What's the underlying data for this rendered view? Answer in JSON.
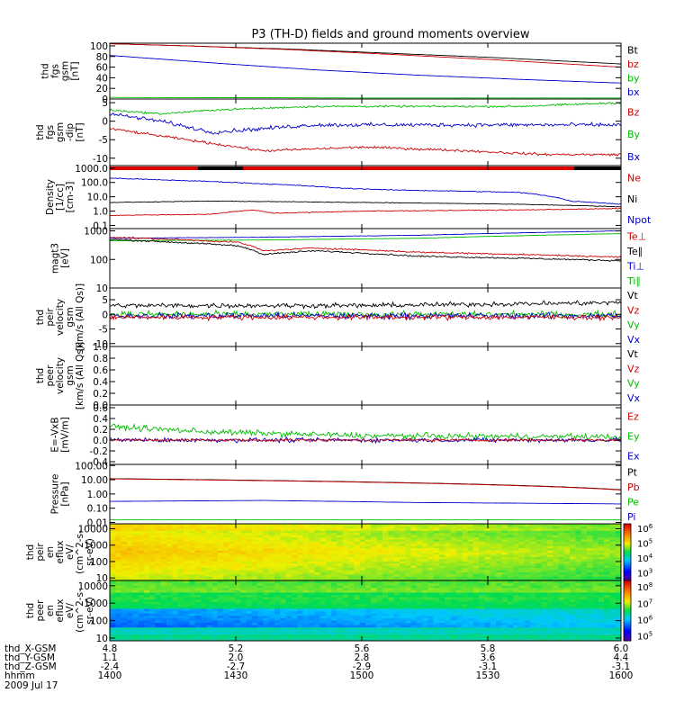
{
  "title": "P3 (TH-D) fields and ground moments overview",
  "chart_data": [
    {
      "id": "fgs-gsm-mag",
      "type": "line",
      "ylabel": [
        "thd",
        "fgs",
        "gsm",
        "[nT]"
      ],
      "yticks": [
        "100",
        "80",
        "60",
        "40",
        "20",
        "0"
      ],
      "ylim": [
        0,
        105
      ],
      "legend": [
        {
          "name": "Bt",
          "color": "#000000"
        },
        {
          "name": "bz",
          "color": "#cc0000"
        },
        {
          "name": "by",
          "color": "#00bb00"
        },
        {
          "name": "bx",
          "color": "#0000cc"
        }
      ],
      "series": [
        {
          "name": "Bt",
          "color": "#000000",
          "t": [
            0.0,
            0.15,
            0.35,
            0.55,
            0.75,
            1.0
          ],
          "values": [
            104,
            100,
            94,
            86,
            78,
            66
          ],
          "noise": 0.2
        },
        {
          "name": "bz",
          "color": "#cc0000",
          "t": [
            0.0,
            0.15,
            0.35,
            0.55,
            0.75,
            1.0
          ],
          "values": [
            104,
            100,
            93,
            84,
            74,
            60
          ],
          "noise": 0.2
        },
        {
          "name": "bx",
          "color": "#0000cc",
          "t": [
            0.0,
            0.2,
            0.4,
            0.6,
            0.8,
            1.0
          ],
          "values": [
            82,
            68,
            55,
            45,
            37,
            30
          ],
          "noise": 0.2
        },
        {
          "name": "by",
          "color": "#00bb00",
          "t": [
            0.0,
            0.5,
            1.0
          ],
          "values": [
            3,
            2,
            2
          ],
          "noise": 0.2
        }
      ]
    },
    {
      "id": "fgs-gsm-dip",
      "type": "line",
      "ylabel": [
        "thd",
        "fgs",
        "gsm",
        "-dip",
        "[nT]"
      ],
      "yticks": [
        "5",
        "0",
        "-5",
        "-10"
      ],
      "ylim": [
        -12,
        6
      ],
      "legend": [
        {
          "name": "Bz",
          "color": "#cc0000"
        },
        {
          "name": "By",
          "color": "#00bb00"
        },
        {
          "name": "Bx",
          "color": "#0000cc"
        }
      ],
      "series": [
        {
          "name": "By",
          "color": "#00bb00",
          "t": [
            0.0,
            0.1,
            0.2,
            0.4,
            0.6,
            0.8,
            1.0
          ],
          "values": [
            3,
            2,
            3,
            4,
            4,
            4,
            5
          ],
          "noise": 0.4
        },
        {
          "name": "Bx",
          "color": "#0000cc",
          "t": [
            0.0,
            0.1,
            0.2,
            0.4,
            0.6,
            0.8,
            1.0
          ],
          "values": [
            2,
            0,
            -3,
            -1,
            -1,
            -1,
            -1
          ],
          "noise": 0.8
        },
        {
          "name": "Bz",
          "color": "#cc0000",
          "t": [
            0.0,
            0.1,
            0.2,
            0.3,
            0.5,
            0.7,
            0.85,
            1.0
          ],
          "values": [
            -2,
            -4,
            -6,
            -8,
            -7,
            -8,
            -9,
            -9
          ],
          "noise": 0.5
        }
      ]
    },
    {
      "id": "density",
      "type": "line",
      "scale": "log",
      "ylabel": [
        "Density",
        "[1/cc]",
        "[cm-3]"
      ],
      "yticks": [
        "1000.0",
        "100.0",
        "10.0",
        "1.0",
        "0.1"
      ],
      "ylim": [
        0.06,
        1500
      ],
      "legend": [
        {
          "name": "Ne",
          "color": "#cc0000"
        },
        {
          "name": "Ni",
          "color": "#000000"
        },
        {
          "name": "Npot",
          "color": "#0000cc"
        }
      ],
      "series": [
        {
          "name": "Npot",
          "color": "#0000cc",
          "t": [
            0.0,
            0.1,
            0.3,
            0.45,
            0.55,
            0.8,
            0.9,
            1.0
          ],
          "values": [
            200,
            150,
            80,
            40,
            30,
            20,
            5,
            3
          ],
          "noise": 0.05
        },
        {
          "name": "Ni",
          "color": "#000000",
          "t": [
            0.0,
            0.2,
            0.5,
            0.8,
            1.0
          ],
          "values": [
            4,
            5,
            4,
            3,
            2
          ],
          "noise": 0.03
        },
        {
          "name": "Ne",
          "color": "#cc0000",
          "t": [
            0.0,
            0.2,
            0.28,
            0.32,
            0.5,
            0.8,
            1.0
          ],
          "values": [
            0.5,
            0.6,
            1.2,
            0.7,
            1.0,
            1.2,
            1.5
          ],
          "noise": 0.04
        }
      ]
    },
    {
      "id": "mageis",
      "type": "line",
      "scale": "log",
      "ylabel": [
        "magt3",
        "[eV]"
      ],
      "yticks": [
        "1000",
        "100",
        "10"
      ],
      "ylim": [
        10,
        1200
      ],
      "legend": [
        {
          "name": "Te⊥",
          "color": "#cc0000"
        },
        {
          "name": "Te∥",
          "color": "#000000"
        },
        {
          "name": "Ti⊥",
          "color": "#0000cc"
        },
        {
          "name": "Ti∥",
          "color": "#00bb00"
        }
      ],
      "series": [
        {
          "name": "Ti⊥",
          "color": "#0000cc",
          "t": [
            0.0,
            0.3,
            0.6,
            1.0
          ],
          "values": [
            550,
            600,
            700,
            1000
          ],
          "noise": 0.01
        },
        {
          "name": "Ti∥",
          "color": "#00bb00",
          "t": [
            0.0,
            0.3,
            0.6,
            1.0
          ],
          "values": [
            450,
            480,
            550,
            800
          ],
          "noise": 0.01
        },
        {
          "name": "Te⊥",
          "color": "#cc0000",
          "t": [
            0.0,
            0.25,
            0.3,
            0.4,
            0.6,
            1.0
          ],
          "values": [
            600,
            400,
            200,
            250,
            180,
            120
          ],
          "noise": 0.04
        },
        {
          "name": "Te∥",
          "color": "#000000",
          "t": [
            0.0,
            0.25,
            0.3,
            0.4,
            0.6,
            1.0
          ],
          "values": [
            500,
            300,
            150,
            200,
            130,
            90
          ],
          "noise": 0.04
        }
      ]
    },
    {
      "id": "peir-velocity",
      "type": "line",
      "ylabel": [
        "thd",
        "peir",
        "velocity",
        "gsm",
        "[km/s (All Qs)]"
      ],
      "yticks": [
        "5",
        "0",
        "-5",
        "-10"
      ],
      "ylim": [
        -11,
        9
      ],
      "legend": [
        {
          "name": "Vt",
          "color": "#000000"
        },
        {
          "name": "Vz",
          "color": "#cc0000"
        },
        {
          "name": "Vy",
          "color": "#00bb00"
        },
        {
          "name": "Vx",
          "color": "#0000cc"
        }
      ],
      "series": [
        {
          "name": "Vy",
          "color": "#00bb00",
          "t": [
            0.0,
            1.0
          ],
          "values": [
            0,
            0
          ],
          "noise": 1.5
        },
        {
          "name": "Vx",
          "color": "#0000cc",
          "t": [
            0.0,
            1.0
          ],
          "values": [
            -0.5,
            -0.5
          ],
          "noise": 1.5
        },
        {
          "name": "Vt",
          "color": "#000000",
          "t": [
            0.0,
            0.5,
            1.0
          ],
          "values": [
            3,
            3,
            4
          ],
          "noise": 1.2
        },
        {
          "name": "Vz",
          "color": "#cc0000",
          "t": [
            0.0,
            1.0
          ],
          "values": [
            -1,
            -1
          ],
          "noise": 1.3
        }
      ]
    },
    {
      "id": "peer-velocity",
      "type": "line",
      "ylabel": [
        "thd",
        "peer",
        "velocity",
        "gsm",
        "[km/s (All Qs)]"
      ],
      "yticks": [
        "1.0",
        "0.8",
        "0.6",
        "0.4",
        "0.2",
        "0.0"
      ],
      "ylim": [
        0,
        1
      ],
      "legend": [
        {
          "name": "Vt",
          "color": "#000000"
        },
        {
          "name": "Vz",
          "color": "#cc0000"
        },
        {
          "name": "Vy",
          "color": "#00bb00"
        },
        {
          "name": "Vx",
          "color": "#0000cc"
        }
      ],
      "series": []
    },
    {
      "id": "efield",
      "type": "line",
      "ylabel": [
        "E=-VxB",
        "[mV/m]"
      ],
      "yticks": [
        "0.6",
        "0.4",
        "0.2",
        "0.0",
        "-0.2",
        "-0.4"
      ],
      "ylim": [
        -0.45,
        0.65
      ],
      "legend": [
        {
          "name": "Ez",
          "color": "#cc0000"
        },
        {
          "name": "Ey",
          "color": "#00bb00"
        },
        {
          "name": "Ex",
          "color": "#0000cc"
        }
      ],
      "series": [
        {
          "name": "Ey",
          "color": "#00bb00",
          "t": [
            0.0,
            0.2,
            0.5,
            1.0
          ],
          "values": [
            0.25,
            0.15,
            0.08,
            0.06
          ],
          "noise": 0.08
        },
        {
          "name": "Ex",
          "color": "#0000cc",
          "t": [
            0.0,
            1.0
          ],
          "values": [
            0.0,
            0.0
          ],
          "noise": 0.06
        },
        {
          "name": "Ez",
          "color": "#cc0000",
          "t": [
            0.0,
            1.0
          ],
          "values": [
            0.0,
            0.0
          ],
          "noise": 0.04
        }
      ]
    },
    {
      "id": "pressure",
      "type": "line",
      "scale": "log",
      "ylabel": [
        "Pressure",
        "[nPa]"
      ],
      "yticks": [
        "100.00",
        "10.00",
        "1.00",
        "0.10",
        "0.01"
      ],
      "ylim": [
        0.008,
        120
      ],
      "legend": [
        {
          "name": "Pt",
          "color": "#000000"
        },
        {
          "name": "Pb",
          "color": "#cc0000"
        },
        {
          "name": "Pe",
          "color": "#00bb00"
        },
        {
          "name": "Pi",
          "color": "#0000cc"
        }
      ],
      "series": [
        {
          "name": "Pt",
          "color": "#000000",
          "t": [
            0.0,
            1.0
          ],
          "values": [
            12,
            2
          ],
          "noise": 0.005
        },
        {
          "name": "Pb",
          "color": "#cc0000",
          "t": [
            0.0,
            1.0
          ],
          "values": [
            11.5,
            1.9
          ],
          "noise": 0.005
        },
        {
          "name": "Pi",
          "color": "#0000cc",
          "t": [
            0.0,
            0.3,
            0.6,
            1.0
          ],
          "values": [
            0.3,
            0.35,
            0.25,
            0.2
          ],
          "noise": 0.005
        },
        {
          "name": "Pe",
          "color": "#00bb00",
          "t": [
            0.0,
            1.0
          ],
          "values": [
            0.015,
            0.015
          ],
          "noise": 0.005
        }
      ]
    },
    {
      "id": "peir-en-eflux",
      "type": "heatmap",
      "ylabel": [
        "thd",
        "peir",
        "en",
        "eflux",
        "eV/",
        "(cm^2-s-",
        "sr-eV)"
      ],
      "yticks": [
        "10000",
        "1000",
        "100",
        "10"
      ],
      "ylim": [
        7,
        20000
      ],
      "colorbar_ticks": [
        "10^6",
        "10^5",
        "10^4",
        "10^3"
      ],
      "colorbar_range": [
        2.5,
        6.3
      ]
    },
    {
      "id": "peer-en-eflux",
      "type": "heatmap",
      "ylabel": [
        "thd",
        "peer",
        "en",
        "eflux",
        "eV/",
        "(cm^2-s-",
        "sr-eV)"
      ],
      "yticks": [
        "10000",
        "1000",
        "100",
        "10"
      ],
      "ylim": [
        7,
        20000
      ],
      "colorbar_ticks": [
        "10^8",
        "10^7",
        "10^6",
        "10^5"
      ],
      "colorbar_range": [
        4.7,
        8.4
      ]
    }
  ],
  "time_axis": {
    "rows": [
      {
        "label": "thd_X-GSM",
        "values": [
          "4.8",
          "5.2",
          "5.6",
          "5.8",
          "6.0"
        ]
      },
      {
        "label": "thd_Y-GSM",
        "values": [
          "1.1",
          "2.0",
          "2.8",
          "3.6",
          "4.4"
        ]
      },
      {
        "label": "thd_Z-GSM",
        "values": [
          "-2.4",
          "-2.7",
          "-2.9",
          "-3.1",
          "-3.1"
        ]
      },
      {
        "label": "hhmm",
        "values": [
          "1400",
          "1430",
          "1500",
          "1530",
          "1600"
        ]
      }
    ],
    "date": "2009 Jul 17"
  }
}
